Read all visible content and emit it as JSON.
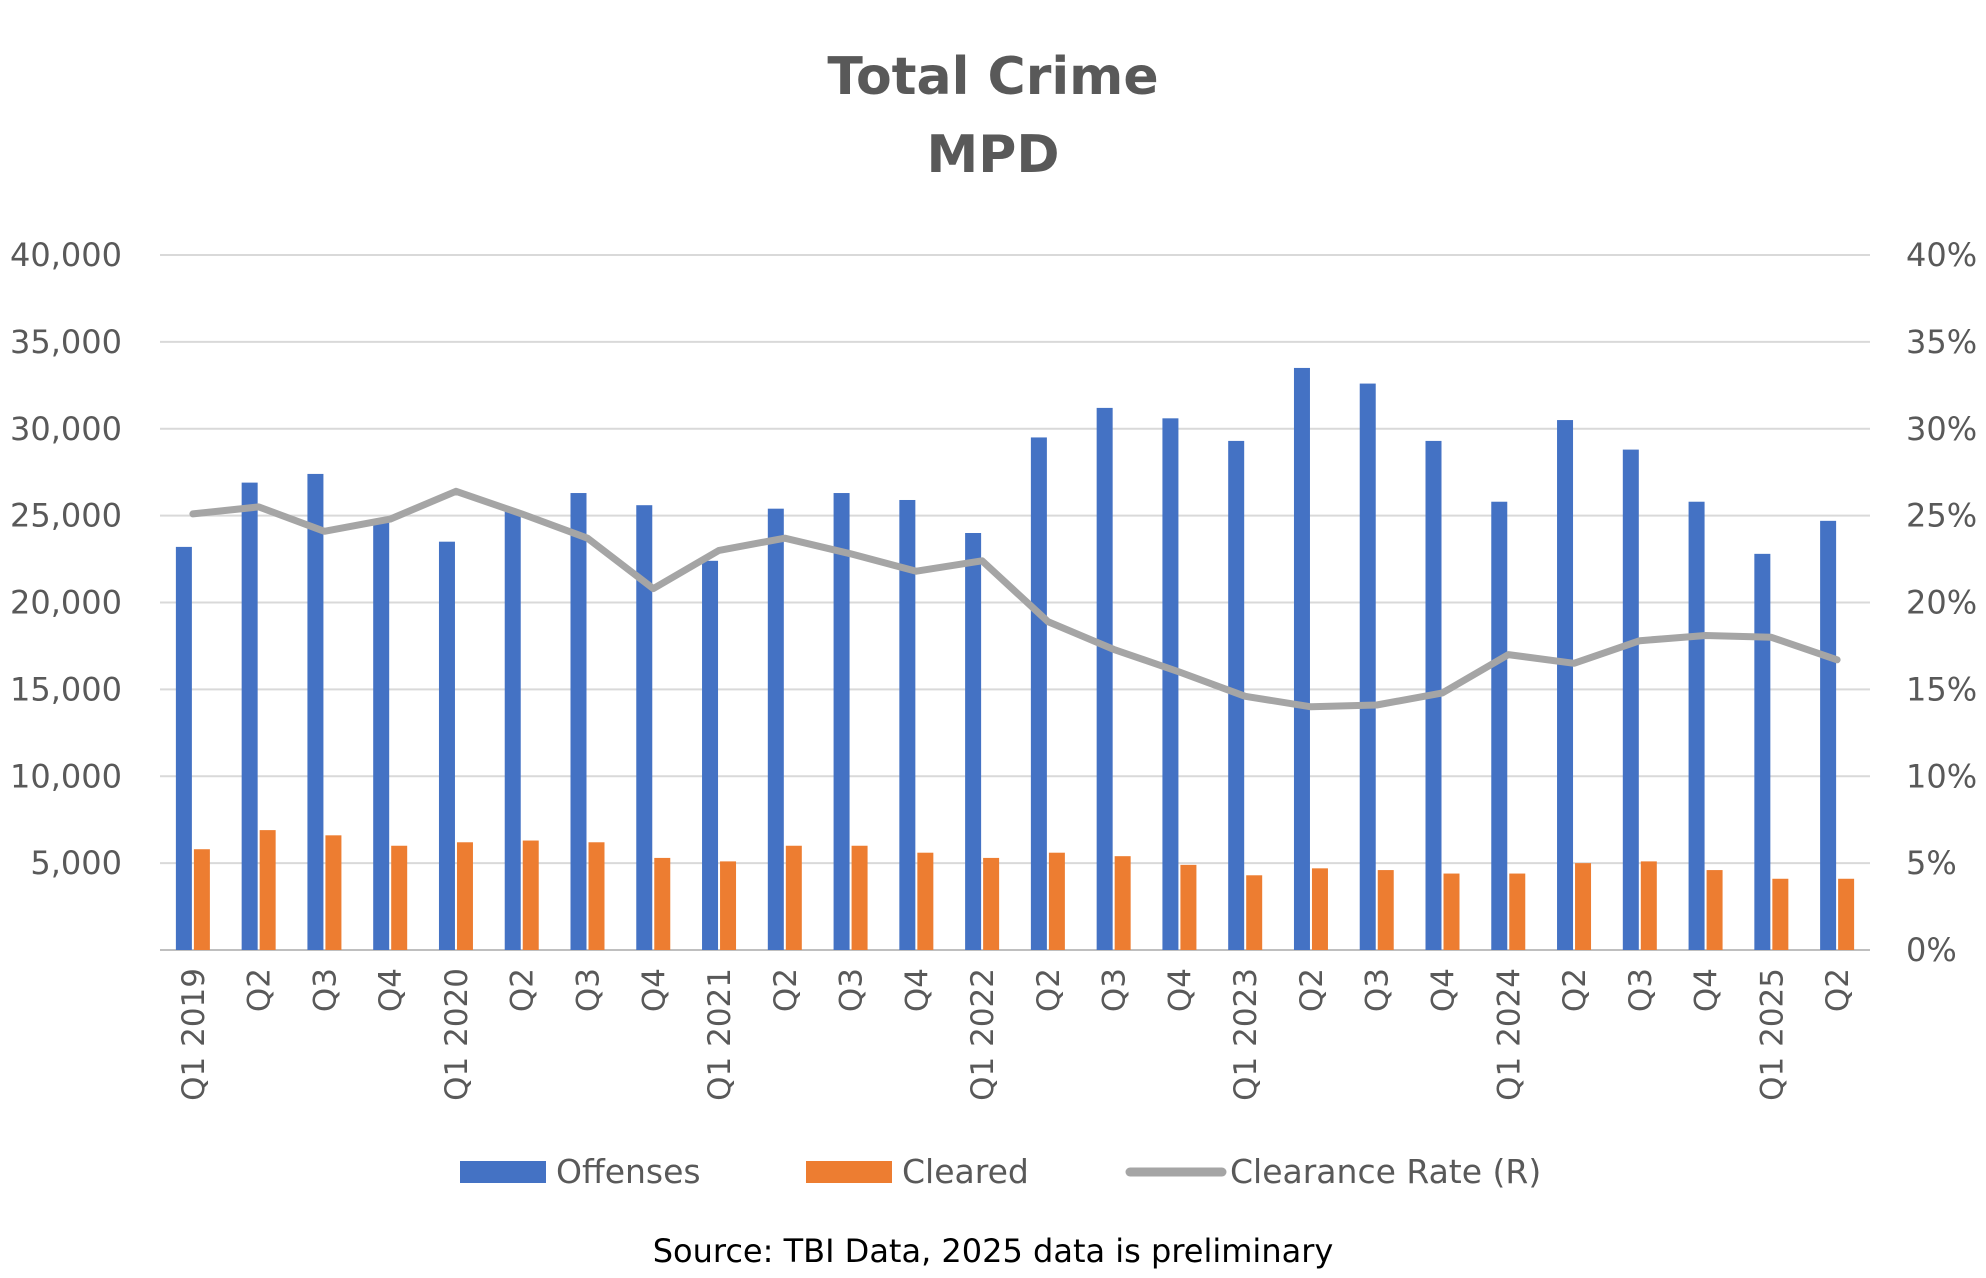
{
  "chart_data": {
    "type": "bar",
    "title": "Total Crime",
    "subtitle": "MPD",
    "source_note": "Source: TBI Data, 2025 data is preliminary",
    "categories": [
      "Q1 2019",
      "Q2",
      "Q3",
      "Q4",
      "Q1 2020",
      "Q2",
      "Q3",
      "Q4",
      "Q1 2021",
      "Q2",
      "Q3",
      "Q4",
      "Q1 2022",
      "Q2",
      "Q3",
      "Q4",
      "Q1 2023",
      "Q2",
      "Q3",
      "Q4",
      "Q1 2024",
      "Q2",
      "Q3",
      "Q4",
      "Q1 2025",
      "Q2"
    ],
    "series": [
      {
        "name": "Offenses",
        "kind": "bar",
        "axis": "left",
        "color": "#4472C4",
        "values": [
          23200,
          26900,
          27400,
          24600,
          23500,
          25300,
          26300,
          25600,
          22400,
          25400,
          26300,
          25900,
          24000,
          29500,
          31200,
          30600,
          29300,
          33500,
          32600,
          29300,
          25800,
          30500,
          28800,
          25800,
          22800,
          24700
        ]
      },
      {
        "name": "Cleared",
        "kind": "bar",
        "axis": "left",
        "color": "#ED7D31",
        "values": [
          5800,
          6900,
          6600,
          6000,
          6200,
          6300,
          6200,
          5300,
          5100,
          6000,
          6000,
          5600,
          5300,
          5600,
          5400,
          4900,
          4300,
          4700,
          4600,
          4400,
          4400,
          5000,
          5100,
          4600,
          4100,
          4100
        ]
      },
      {
        "name": "Clearance Rate (R)",
        "kind": "line",
        "axis": "right",
        "color": "#A5A5A5",
        "values": [
          25.1,
          25.5,
          24.1,
          24.8,
          26.4,
          25.1,
          23.7,
          20.8,
          23.0,
          23.7,
          22.8,
          21.8,
          22.4,
          18.9,
          17.3,
          16.0,
          14.6,
          14.0,
          14.1,
          14.8,
          17.0,
          16.5,
          17.8,
          18.1,
          18.0,
          16.7
        ]
      }
    ],
    "yaxis_left": {
      "min": 0,
      "max": 40000,
      "step": 5000,
      "tick_labels": [
        "",
        "5,000",
        "10,000",
        "15,000",
        "20,000",
        "25,000",
        "30,000",
        "35,000",
        "40,000"
      ]
    },
    "yaxis_right": {
      "min": 0,
      "max": 40,
      "step": 5,
      "tick_labels": [
        "0%",
        "5%",
        "10%",
        "15%",
        "20%",
        "25%",
        "30%",
        "35%",
        "40%"
      ]
    },
    "grid": true,
    "legend_position": "bottom"
  }
}
